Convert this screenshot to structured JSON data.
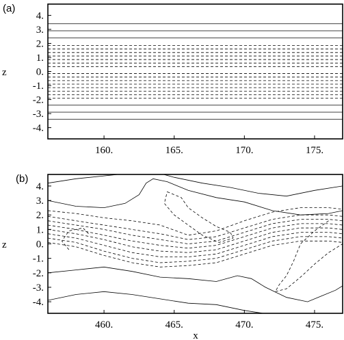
{
  "chart_data": [
    {
      "type": "contour",
      "panel_label": "(a)",
      "xlabel": "",
      "ylabel": "z",
      "xlim": [
        156,
        177
      ],
      "ylim": [
        -4.8,
        4.8
      ],
      "xticks": [
        160,
        165,
        170,
        175
      ],
      "xtick_labels": [
        "160.",
        "165.",
        "170.",
        "175."
      ],
      "yticks": [
        4,
        3,
        2,
        1,
        0,
        -1,
        -2,
        -3,
        -4
      ],
      "ytick_labels": [
        "4.",
        "3.",
        "2.",
        "1.",
        "0.",
        "-1.",
        "-2.",
        "-3.",
        "-4."
      ],
      "solid_levels_z": [
        3.4,
        2.9,
        2.4,
        -2.4,
        -2.9,
        -3.4
      ],
      "dashed_levels_z": [
        1.85,
        1.6,
        1.35,
        1.1,
        0.85,
        0.6,
        0.35,
        -0.15,
        -0.4,
        -0.65,
        -0.9,
        -1.15,
        -1.4,
        -1.65,
        -1.9
      ]
    },
    {
      "type": "contour",
      "panel_label": "(b)",
      "xlabel": "x",
      "ylabel": "z",
      "xlim": [
        456,
        477
      ],
      "ylim": [
        -4.8,
        4.8
      ],
      "xticks": [
        460,
        465,
        470,
        475
      ],
      "xtick_labels": [
        "460.",
        "465.",
        "470.",
        "475."
      ],
      "yticks": [
        4,
        3,
        2,
        1,
        0,
        -1,
        -2,
        -3,
        -4
      ],
      "ytick_labels": [
        "4.",
        "3.",
        "2.",
        "1.",
        "0.",
        "-1.",
        "-2.",
        "-3.",
        "-4."
      ],
      "solid_contours": [
        [
          [
            456,
            4.2
          ],
          [
            458,
            4.5
          ],
          [
            460,
            4.7
          ],
          [
            462,
            4.9
          ],
          [
            463.5,
            5.0
          ],
          [
            465,
            4.6
          ],
          [
            467,
            4.2
          ],
          [
            469,
            3.9
          ],
          [
            471,
            3.5
          ],
          [
            473,
            3.3
          ],
          [
            475,
            3.7
          ],
          [
            477,
            4.0
          ]
        ],
        [
          [
            456,
            3.0
          ],
          [
            458,
            2.6
          ],
          [
            460,
            2.5
          ],
          [
            461.5,
            2.8
          ],
          [
            462.5,
            3.4
          ],
          [
            463,
            4.2
          ],
          [
            463.5,
            4.5
          ],
          [
            464.5,
            4.3
          ],
          [
            466,
            3.7
          ],
          [
            468,
            3.2
          ],
          [
            470,
            2.9
          ],
          [
            472,
            2.3
          ],
          [
            474,
            2.0
          ],
          [
            476,
            2.1
          ],
          [
            477,
            2.3
          ]
        ],
        [
          [
            456,
            -2.0
          ],
          [
            458,
            -1.8
          ],
          [
            460,
            -1.6
          ],
          [
            462,
            -1.9
          ],
          [
            464,
            -2.3
          ],
          [
            466,
            -2.4
          ],
          [
            468,
            -2.6
          ],
          [
            469.5,
            -2.2
          ],
          [
            470.5,
            -2.4
          ],
          [
            471.5,
            -3.0
          ],
          [
            473,
            -3.7
          ],
          [
            474.5,
            -4.0
          ],
          [
            475.5,
            -3.6
          ],
          [
            476.5,
            -3.2
          ],
          [
            477,
            -2.9
          ]
        ],
        [
          [
            456,
            -3.9
          ],
          [
            458,
            -3.5
          ],
          [
            460,
            -3.3
          ],
          [
            462,
            -3.5
          ],
          [
            464,
            -3.8
          ],
          [
            466,
            -4.1
          ],
          [
            468,
            -4.2
          ],
          [
            470,
            -4.6
          ],
          [
            472,
            -4.9
          ],
          [
            474,
            -5.0
          ]
        ]
      ],
      "dashed_contours": [
        [
          [
            456,
            2.3
          ],
          [
            458,
            2.1
          ],
          [
            460,
            1.8
          ],
          [
            462,
            1.6
          ],
          [
            464,
            1.3
          ],
          [
            466,
            0.6
          ],
          [
            468,
            0.9
          ],
          [
            470,
            1.6
          ],
          [
            472,
            2.2
          ],
          [
            474,
            2.5
          ],
          [
            476,
            2.5
          ],
          [
            477,
            2.4
          ]
        ],
        [
          [
            456,
            1.9
          ],
          [
            458,
            1.6
          ],
          [
            460,
            1.3
          ],
          [
            462,
            1.0
          ],
          [
            464,
            0.7
          ],
          [
            466,
            0.3
          ],
          [
            468,
            0.5
          ],
          [
            470,
            1.1
          ],
          [
            472,
            1.7
          ],
          [
            474,
            2.0
          ],
          [
            476,
            2.0
          ],
          [
            477,
            1.9
          ]
        ],
        [
          [
            456,
            1.6
          ],
          [
            458,
            1.3
          ],
          [
            460,
            1.0
          ],
          [
            462,
            0.6
          ],
          [
            464,
            0.3
          ],
          [
            466,
            0.0
          ],
          [
            468,
            0.2
          ],
          [
            470,
            0.8
          ],
          [
            472,
            1.4
          ],
          [
            474,
            1.7
          ],
          [
            476,
            1.7
          ],
          [
            477,
            1.6
          ]
        ],
        [
          [
            456,
            1.3
          ],
          [
            458,
            1.0
          ],
          [
            460,
            0.6
          ],
          [
            462,
            0.2
          ],
          [
            464,
            -0.1
          ],
          [
            466,
            -0.3
          ],
          [
            468,
            -0.1
          ],
          [
            470,
            0.5
          ],
          [
            472,
            1.1
          ],
          [
            474,
            1.4
          ],
          [
            476,
            1.4
          ],
          [
            477,
            1.3
          ]
        ],
        [
          [
            456,
            1.0
          ],
          [
            458,
            0.7
          ],
          [
            460,
            0.3
          ],
          [
            462,
            -0.2
          ],
          [
            464,
            -0.5
          ],
          [
            466,
            -0.6
          ],
          [
            468,
            -0.4
          ],
          [
            470,
            0.2
          ],
          [
            472,
            0.8
          ],
          [
            474,
            1.1
          ],
          [
            476,
            1.1
          ],
          [
            477,
            1.0
          ]
        ],
        [
          [
            456,
            0.7
          ],
          [
            458,
            0.4
          ],
          [
            460,
            -0.1
          ],
          [
            462,
            -0.6
          ],
          [
            464,
            -0.9
          ],
          [
            466,
            -0.9
          ],
          [
            468,
            -0.7
          ],
          [
            470,
            -0.1
          ],
          [
            472,
            0.5
          ],
          [
            474,
            0.8
          ],
          [
            476,
            0.8
          ],
          [
            477,
            0.7
          ]
        ],
        [
          [
            456,
            0.4
          ],
          [
            458,
            0.1
          ],
          [
            460,
            -0.5
          ],
          [
            462,
            -1.0
          ],
          [
            464,
            -1.3
          ],
          [
            466,
            -1.2
          ],
          [
            468,
            -1.0
          ],
          [
            470,
            -0.4
          ],
          [
            472,
            0.2
          ],
          [
            474,
            0.5
          ],
          [
            476,
            0.5
          ],
          [
            477,
            0.4
          ]
        ],
        [
          [
            456,
            0.1
          ],
          [
            458,
            -0.2
          ],
          [
            460,
            -0.8
          ],
          [
            462,
            -1.3
          ],
          [
            464,
            -1.6
          ],
          [
            466,
            -1.5
          ],
          [
            468,
            -1.3
          ],
          [
            470,
            -0.7
          ],
          [
            472,
            -0.1
          ],
          [
            474,
            0.2
          ],
          [
            476,
            0.2
          ],
          [
            477,
            0.1
          ]
        ],
        [
          [
            457.5,
            -0.4
          ],
          [
            457,
            0.2
          ],
          [
            457.5,
            0.9
          ],
          [
            458.5,
            1.1
          ],
          [
            459,
            0.6
          ]
        ],
        [
          [
            464.5,
            3.6
          ],
          [
            465.5,
            3.2
          ],
          [
            466,
            2.5
          ],
          [
            467,
            1.8
          ],
          [
            468,
            1.2
          ],
          [
            469,
            0.8
          ],
          [
            469.2,
            0.4
          ],
          [
            468.2,
            0.1
          ],
          [
            467,
            0.6
          ],
          [
            466,
            1.3
          ],
          [
            465,
            2.0
          ],
          [
            464.3,
            2.8
          ],
          [
            464.5,
            3.6
          ]
        ],
        [
          [
            476,
            1.6
          ],
          [
            475,
            0.9
          ],
          [
            474,
            0.0
          ],
          [
            473.5,
            -1.2
          ],
          [
            473,
            -2.2
          ],
          [
            472.5,
            -2.8
          ],
          [
            472.2,
            -3.3
          ],
          [
            473,
            -3.1
          ],
          [
            474,
            -2.3
          ],
          [
            475,
            -1.4
          ],
          [
            476,
            -0.6
          ],
          [
            477,
            0.0
          ]
        ]
      ]
    }
  ]
}
